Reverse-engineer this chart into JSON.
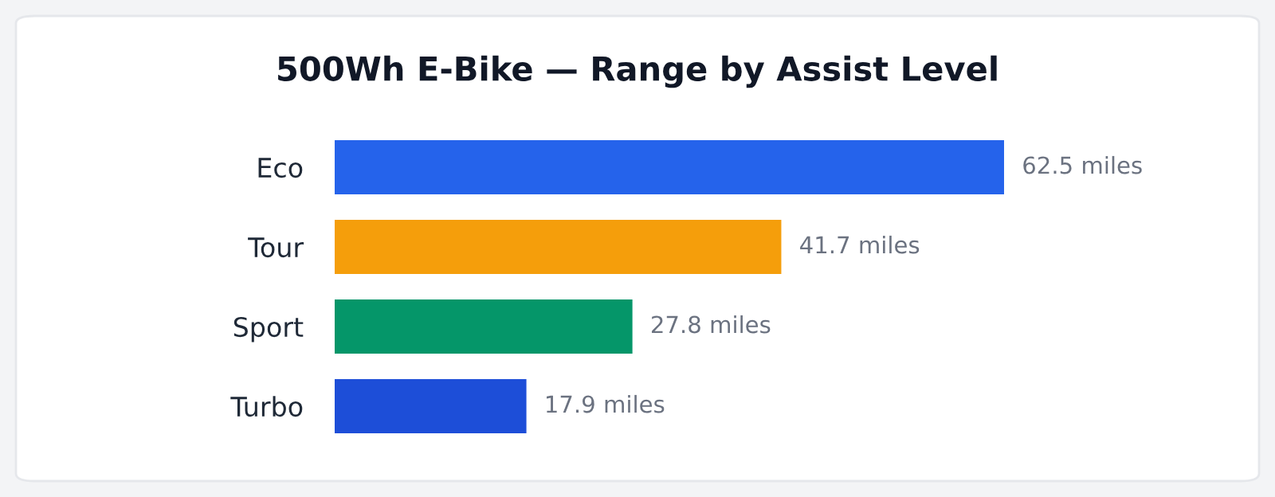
{
  "chart_data": {
    "type": "bar",
    "orientation": "horizontal",
    "title": "500Wh E-Bike — Range by Assist Level",
    "categories": [
      "Eco",
      "Tour",
      "Sport",
      "Turbo"
    ],
    "values": [
      62.5,
      41.7,
      27.8,
      17.9
    ],
    "colors": [
      "#2563eb",
      "#f59e0b",
      "#059669",
      "#1d4ed8"
    ],
    "value_labels": [
      "62.5 miles",
      "41.7 miles",
      "27.8 miles",
      "17.9 miles"
    ],
    "grid": false,
    "legend": false
  }
}
